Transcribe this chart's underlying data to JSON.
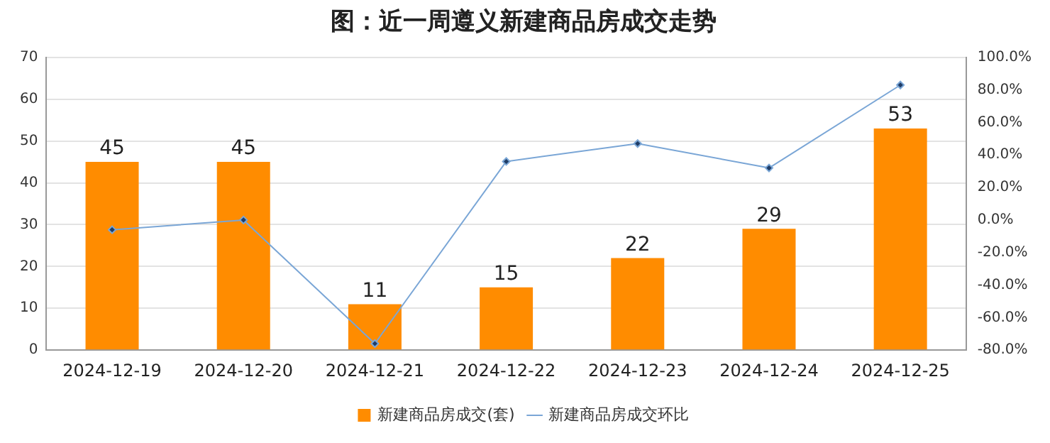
{
  "chart_data": {
    "type": "bar",
    "title": "图：近一周遵义新建商品房成交走势",
    "categories": [
      "2024-12-19",
      "2024-12-20",
      "2024-12-21",
      "2024-12-22",
      "2024-12-23",
      "2024-12-24",
      "2024-12-25"
    ],
    "series": [
      {
        "name": "新建商品房成交(套)",
        "color": "#ff8c00",
        "values": [
          45,
          45,
          11,
          15,
          22,
          29,
          53
        ],
        "data_labels": true
      },
      {
        "name": "新建商品房成交环比",
        "type": "line",
        "axis": "y2",
        "color": "#7aa6d6",
        "values": [
          -6,
          0,
          -76,
          36,
          47,
          32,
          83
        ],
        "marker": "diamond"
      }
    ],
    "ylim": [
      0,
      70
    ],
    "yticks": [
      0,
      10,
      20,
      30,
      40,
      50,
      60,
      70
    ],
    "y2lim": [
      -80,
      100
    ],
    "y2ticks": [
      {
        "value": -80,
        "label": "-80.0%"
      },
      {
        "value": -60,
        "label": "-60.0%"
      },
      {
        "value": -40,
        "label": "-40.0%"
      },
      {
        "value": -20,
        "label": "-20.0%"
      },
      {
        "value": 0,
        "label": "0.0%"
      },
      {
        "value": 20,
        "label": "20.0%"
      },
      {
        "value": 40,
        "label": "40.0%"
      },
      {
        "value": 60,
        "label": "60.0%"
      },
      {
        "value": 80,
        "label": "80.0%"
      },
      {
        "value": 100,
        "label": "100.0%"
      }
    ],
    "grid": "y",
    "legend": "bottom"
  }
}
